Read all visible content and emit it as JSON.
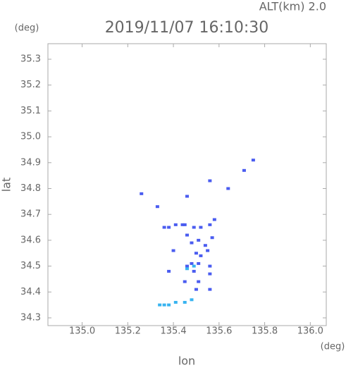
{
  "chart_data": {
    "type": "scatter",
    "title": "2019/11/07 16:10:30",
    "subtitle": "ALT(km) 2.0",
    "x_label": "lon",
    "y_label": "lat",
    "x_unit": "(deg)",
    "y_unit": "(deg)",
    "xlim": [
      134.85,
      136.07
    ],
    "ylim": [
      34.27,
      35.36
    ],
    "xticks": [
      {
        "value": 135.0,
        "label": "135.0"
      },
      135.2,
      135.4,
      135.6,
      135.8,
      {
        "value": 136.0,
        "label": "136.0"
      }
    ],
    "yticks": [
      34.3,
      34.4,
      34.5,
      34.6,
      34.7,
      34.8,
      34.9,
      {
        "value": 35.0,
        "label": "35.0"
      },
      35.1,
      35.2,
      35.3
    ],
    "series": [
      {
        "color": "#4a5cf0",
        "x": [
          135.26,
          135.46,
          135.71,
          135.75,
          135.56,
          135.64,
          135.33,
          135.36,
          135.38,
          135.41,
          135.44,
          135.45,
          135.49,
          135.52,
          135.56,
          135.58,
          135.46,
          135.48,
          135.51,
          135.54,
          135.57,
          135.5,
          135.52,
          135.55,
          135.48,
          135.51,
          135.46,
          135.49,
          135.56,
          135.56,
          135.4,
          135.38,
          135.45,
          135.51,
          135.5,
          135.56
        ],
        "y": [
          34.78,
          34.77,
          34.87,
          34.91,
          34.83,
          34.8,
          34.73,
          34.65,
          34.65,
          34.66,
          34.66,
          34.66,
          34.65,
          34.65,
          34.66,
          34.68,
          34.62,
          34.59,
          34.6,
          34.58,
          34.61,
          34.55,
          34.54,
          34.56,
          34.51,
          34.51,
          34.5,
          34.48,
          34.5,
          34.47,
          34.56,
          34.48,
          34.44,
          34.44,
          34.41,
          34.41
        ]
      },
      {
        "color": "#38b4f0",
        "x": [
          135.46,
          135.49,
          135.34,
          135.36,
          135.38,
          135.41,
          135.45,
          135.48
        ],
        "y": [
          34.49,
          34.5,
          34.35,
          34.35,
          34.35,
          34.36,
          34.36,
          34.37
        ]
      }
    ],
    "grid": false
  }
}
